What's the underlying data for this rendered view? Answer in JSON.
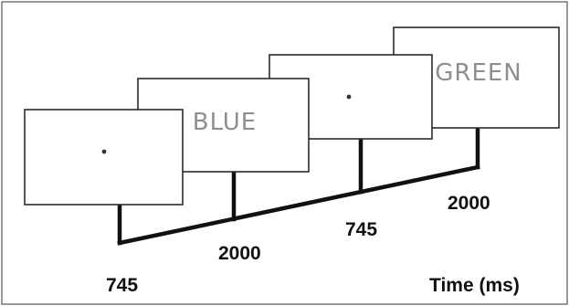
{
  "frames": [
    {
      "id": "fixation-1",
      "content": "",
      "type": "fixation"
    },
    {
      "id": "word-blue",
      "content": "BLUE",
      "type": "word"
    },
    {
      "id": "fixation-2",
      "content": "",
      "type": "fixation"
    },
    {
      "id": "word-green",
      "content": "GREEN",
      "type": "word"
    }
  ],
  "durations": [
    "745",
    "2000",
    "745",
    "2000"
  ],
  "axis_label": "Time (ms)",
  "colors": {
    "frame_border": "#2b2b2b",
    "word_text": "#8e8e8e",
    "timeline": "#111111",
    "background": "#ffffff"
  }
}
